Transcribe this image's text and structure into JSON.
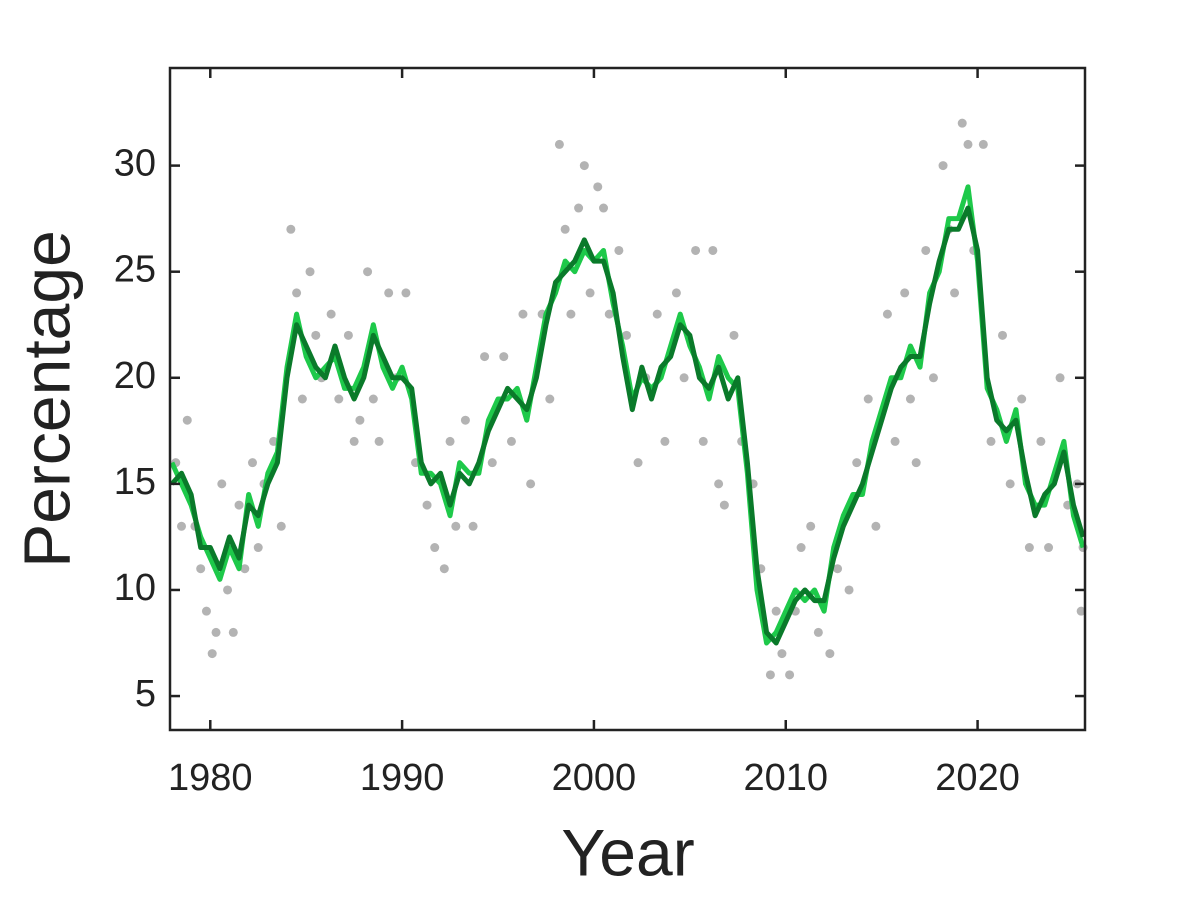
{
  "chart_data": {
    "type": "line",
    "x_label": "Year",
    "y_label": "Percentage",
    "xlim": [
      1977.9,
      2025.6
    ],
    "ylim": [
      3.4,
      34.6
    ],
    "xticks": [
      1980,
      1990,
      2000,
      2010,
      2020
    ],
    "yticks": [
      5,
      10,
      15,
      20,
      25,
      30
    ],
    "x": [
      1978.0,
      1978.5,
      1979.0,
      1979.5,
      1980.0,
      1980.5,
      1981.0,
      1981.5,
      1982.0,
      1982.5,
      1983.0,
      1983.5,
      1984.0,
      1984.5,
      1985.0,
      1985.5,
      1986.0,
      1986.5,
      1987.0,
      1987.5,
      1988.0,
      1988.5,
      1989.0,
      1989.5,
      1990.0,
      1990.5,
      1991.0,
      1991.5,
      1992.0,
      1992.5,
      1993.0,
      1993.5,
      1994.0,
      1994.5,
      1995.0,
      1995.5,
      1996.0,
      1996.5,
      1997.0,
      1997.5,
      1998.0,
      1998.5,
      1999.0,
      1999.5,
      2000.0,
      2000.5,
      2001.0,
      2001.5,
      2002.0,
      2002.5,
      2003.0,
      2003.5,
      2004.0,
      2004.5,
      2005.0,
      2005.5,
      2006.0,
      2006.5,
      2007.0,
      2007.5,
      2008.0,
      2008.5,
      2009.0,
      2009.5,
      2010.0,
      2010.5,
      2011.0,
      2011.5,
      2012.0,
      2012.5,
      2013.0,
      2013.5,
      2014.0,
      2014.5,
      2015.0,
      2015.5,
      2016.0,
      2016.5,
      2017.0,
      2017.5,
      2018.0,
      2018.5,
      2019.0,
      2019.5,
      2020.0,
      2020.5,
      2021.0,
      2021.5,
      2022.0,
      2022.5,
      2023.0,
      2023.5,
      2024.0,
      2024.5,
      2025.0,
      2025.5
    ],
    "series": [
      {
        "type": "scatter",
        "color": "#808080",
        "x": [
          1978.2,
          1978.5,
          1978.8,
          1979.2,
          1979.5,
          1979.8,
          1980.1,
          1980.3,
          1980.6,
          1980.9,
          1981.2,
          1981.5,
          1981.8,
          1982.2,
          1982.5,
          1982.8,
          1983.3,
          1983.7,
          1984.2,
          1984.5,
          1984.8,
          1985.2,
          1985.5,
          1985.8,
          1986.3,
          1986.7,
          1987.2,
          1987.5,
          1987.8,
          1988.2,
          1988.5,
          1988.8,
          1989.3,
          1989.7,
          1990.2,
          1990.7,
          1991.3,
          1991.7,
          1992.2,
          1992.5,
          1992.8,
          1993.3,
          1993.7,
          1994.3,
          1994.7,
          1995.3,
          1995.7,
          1996.3,
          1996.7,
          1997.3,
          1997.7,
          1998.2,
          1998.5,
          1998.8,
          1999.2,
          1999.5,
          1999.8,
          2000.2,
          2000.5,
          2000.8,
          2001.3,
          2001.7,
          2002.3,
          2002.7,
          2003.3,
          2003.7,
          2004.3,
          2004.7,
          2005.3,
          2005.7,
          2006.2,
          2006.5,
          2006.8,
          2007.3,
          2007.7,
          2008.3,
          2008.7,
          2009.2,
          2009.5,
          2009.8,
          2010.2,
          2010.5,
          2010.8,
          2011.3,
          2011.7,
          2012.3,
          2012.7,
          2013.3,
          2013.7,
          2014.3,
          2014.7,
          2015.3,
          2015.7,
          2016.2,
          2016.5,
          2016.8,
          2017.3,
          2017.7,
          2018.2,
          2018.5,
          2018.8,
          2019.2,
          2019.5,
          2019.8,
          2020.3,
          2020.7,
          2021.3,
          2021.7,
          2022.3,
          2022.7,
          2023.3,
          2023.7,
          2024.3,
          2024.7,
          2025.2,
          2025.4,
          2025.5
        ],
        "values": [
          16,
          13,
          18,
          13,
          11,
          9,
          7,
          8,
          15,
          10,
          8,
          14,
          11,
          16,
          12,
          15,
          17,
          13,
          27,
          24,
          19,
          25,
          22,
          20,
          23,
          19,
          22,
          17,
          18,
          25,
          19,
          17,
          24,
          20,
          24,
          16,
          14,
          12,
          11,
          17,
          13,
          18,
          13,
          21,
          16,
          21,
          17,
          23,
          15,
          23,
          19,
          31,
          27,
          23,
          28,
          30,
          24,
          29,
          28,
          23,
          26,
          22,
          16,
          20,
          23,
          17,
          24,
          20,
          26,
          17,
          26,
          15,
          14,
          22,
          17,
          15,
          11,
          6,
          9,
          7,
          6,
          9,
          12,
          13,
          8,
          7,
          11,
          10,
          16,
          19,
          13,
          23,
          17,
          24,
          19,
          16,
          26,
          20,
          30,
          27,
          24,
          32,
          31,
          26,
          31,
          17,
          22,
          15,
          19,
          12,
          17,
          12,
          20,
          14,
          15,
          9,
          12
        ]
      },
      {
        "type": "line",
        "color": "#1ec94a",
        "values": [
          16,
          15,
          14,
          12.5,
          11.5,
          10.5,
          12,
          11,
          14.5,
          13,
          15.5,
          16.5,
          20.5,
          23,
          21,
          20,
          20.5,
          21,
          19.5,
          19.5,
          20.5,
          22.5,
          20.5,
          19.5,
          20.5,
          19,
          15.5,
          15.5,
          15,
          13.5,
          16,
          15.5,
          15.5,
          18,
          19,
          19,
          19.5,
          18,
          20.5,
          23,
          24,
          25.5,
          25,
          26,
          25.5,
          26,
          23.5,
          21.5,
          19,
          20,
          19.5,
          20,
          21.5,
          23,
          21.5,
          20.5,
          19,
          21,
          20,
          19.5,
          15.5,
          10,
          7.5,
          8,
          9,
          10,
          9.5,
          10,
          9,
          12,
          13.5,
          14.5,
          14.5,
          17,
          18.5,
          20,
          20,
          21.5,
          20.5,
          24,
          25,
          27.5,
          27.5,
          29,
          25.5,
          19.5,
          18.5,
          17,
          18.5,
          15,
          14,
          14,
          15.5,
          17,
          13.5,
          12
        ]
      },
      {
        "type": "line",
        "color": "#0a7a2a",
        "values": [
          15,
          15.5,
          14.5,
          12,
          12,
          11,
          12.5,
          11.5,
          14,
          13.5,
          15,
          16,
          20,
          22.5,
          21.5,
          20.5,
          20,
          21.5,
          20,
          19,
          20,
          22,
          21,
          20,
          20,
          19.5,
          16,
          15,
          15.5,
          14,
          15.5,
          15,
          16,
          17.5,
          18.5,
          19.5,
          19,
          18.5,
          20,
          22.5,
          24.5,
          25,
          25.5,
          26.5,
          25.5,
          25.5,
          24,
          21,
          18.5,
          20.5,
          19,
          20.5,
          21,
          22.5,
          22,
          20,
          19.5,
          20.5,
          19,
          20,
          16,
          11,
          8,
          7.5,
          8.5,
          9.5,
          10,
          9.5,
          9.5,
          11.5,
          13,
          14,
          15,
          16.5,
          18,
          19.5,
          20.5,
          21,
          21,
          23.5,
          25.5,
          27,
          27,
          28,
          26,
          20,
          18,
          17.5,
          18,
          15.5,
          13.5,
          14.5,
          15,
          16.5,
          14,
          12.5
        ]
      }
    ]
  }
}
